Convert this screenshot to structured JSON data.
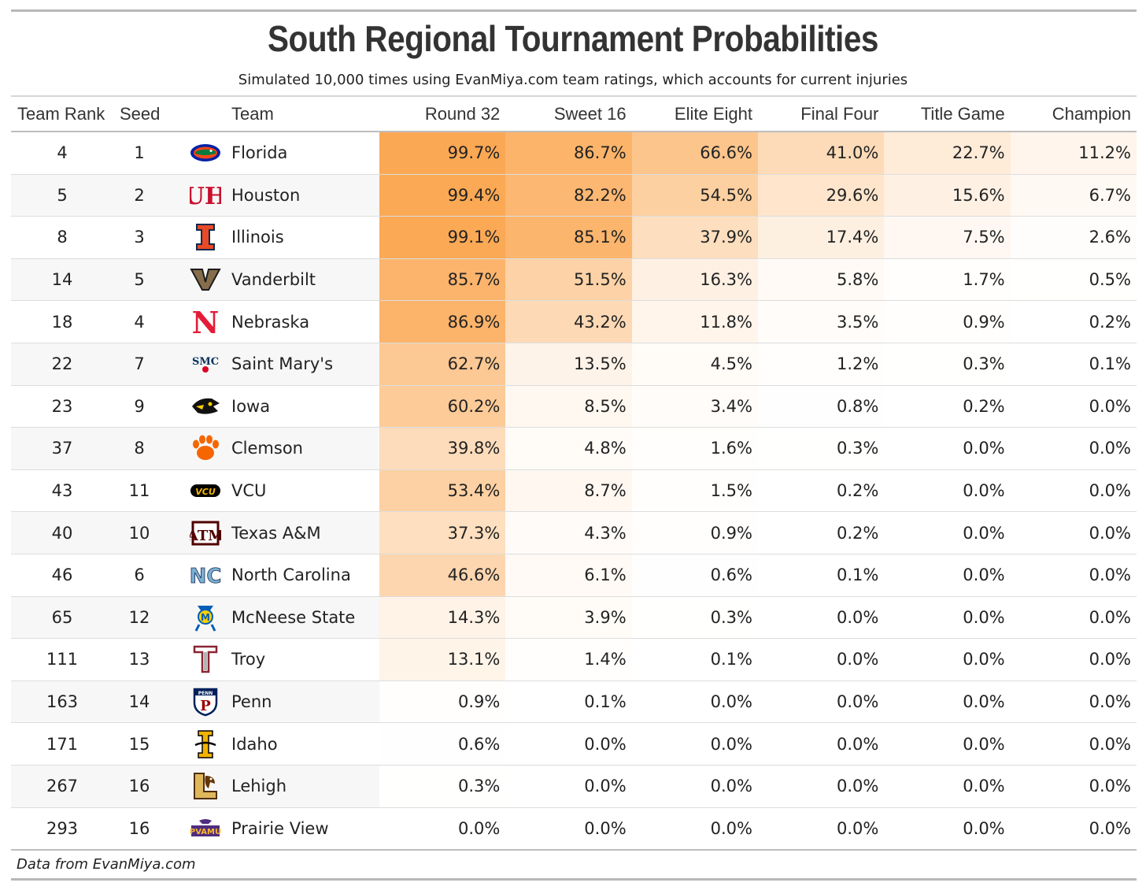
{
  "title": "South Regional Tournament Probabilities",
  "subtitle": "Simulated 10,000 times using EvanMiya.com team ratings, which accounts for current injuries",
  "source": "Data from EvanMiya.com",
  "headers": {
    "team_rank": "Team Rank",
    "seed": "Seed",
    "team": "Team",
    "round_32": "Round 32",
    "sweet_16": "Sweet 16",
    "elite_eight": "Elite Eight",
    "final_four": "Final Four",
    "title_game": "Title Game",
    "champion": "Champion"
  },
  "colors": {
    "heat_max": "#fba853",
    "heat_min": "#ffffff",
    "text": "#222222",
    "row_alt": "#f7f7f7"
  },
  "chart_data": {
    "type": "table",
    "title": "South Regional Tournament Probabilities",
    "subtitle": "Simulated 10,000 times using EvanMiya.com team ratings, which accounts for current injuries",
    "columns": [
      "Team Rank",
      "Seed",
      "Team",
      "Round 32",
      "Sweet 16",
      "Elite Eight",
      "Final Four",
      "Title Game",
      "Champion"
    ],
    "rows": [
      {
        "rank": 4,
        "seed": 1,
        "team": "Florida",
        "logo": "florida-gator-logo-icon",
        "probs": [
          99.7,
          86.7,
          66.6,
          41.0,
          22.7,
          11.2
        ],
        "probs_text": [
          "99.7%",
          "86.7%",
          "66.6%",
          "41.0%",
          "22.7%",
          "11.2%"
        ]
      },
      {
        "rank": 5,
        "seed": 2,
        "team": "Houston",
        "logo": "houston-uh-logo-icon",
        "probs": [
          99.4,
          82.2,
          54.5,
          29.6,
          15.6,
          6.7
        ],
        "probs_text": [
          "99.4%",
          "82.2%",
          "54.5%",
          "29.6%",
          "15.6%",
          "6.7%"
        ]
      },
      {
        "rank": 8,
        "seed": 3,
        "team": "Illinois",
        "logo": "illinois-i-logo-icon",
        "probs": [
          99.1,
          85.1,
          37.9,
          17.4,
          7.5,
          2.6
        ],
        "probs_text": [
          "99.1%",
          "85.1%",
          "37.9%",
          "17.4%",
          "7.5%",
          "2.6%"
        ]
      },
      {
        "rank": 14,
        "seed": 5,
        "team": "Vanderbilt",
        "logo": "vanderbilt-v-logo-icon",
        "probs": [
          85.7,
          51.5,
          16.3,
          5.8,
          1.7,
          0.5
        ],
        "probs_text": [
          "85.7%",
          "51.5%",
          "16.3%",
          "5.8%",
          "1.7%",
          "0.5%"
        ]
      },
      {
        "rank": 18,
        "seed": 4,
        "team": "Nebraska",
        "logo": "nebraska-n-logo-icon",
        "probs": [
          86.9,
          43.2,
          11.8,
          3.5,
          0.9,
          0.2
        ],
        "probs_text": [
          "86.9%",
          "43.2%",
          "11.8%",
          "3.5%",
          "0.9%",
          "0.2%"
        ]
      },
      {
        "rank": 22,
        "seed": 7,
        "team": "Saint Mary's",
        "logo": "saint-marys-smc-logo-icon",
        "probs": [
          62.7,
          13.5,
          4.5,
          1.2,
          0.3,
          0.1
        ],
        "probs_text": [
          "62.7%",
          "13.5%",
          "4.5%",
          "1.2%",
          "0.3%",
          "0.1%"
        ]
      },
      {
        "rank": 23,
        "seed": 9,
        "team": "Iowa",
        "logo": "iowa-hawkeye-logo-icon",
        "probs": [
          60.2,
          8.5,
          3.4,
          0.8,
          0.2,
          0.0
        ],
        "probs_text": [
          "60.2%",
          "8.5%",
          "3.4%",
          "0.8%",
          "0.2%",
          "0.0%"
        ]
      },
      {
        "rank": 37,
        "seed": 8,
        "team": "Clemson",
        "logo": "clemson-paw-logo-icon",
        "probs": [
          39.8,
          4.8,
          1.6,
          0.3,
          0.0,
          0.0
        ],
        "probs_text": [
          "39.8%",
          "4.8%",
          "1.6%",
          "0.3%",
          "0.0%",
          "0.0%"
        ]
      },
      {
        "rank": 43,
        "seed": 11,
        "team": "VCU",
        "logo": "vcu-logo-icon",
        "probs": [
          53.4,
          8.7,
          1.5,
          0.2,
          0.0,
          0.0
        ],
        "probs_text": [
          "53.4%",
          "8.7%",
          "1.5%",
          "0.2%",
          "0.0%",
          "0.0%"
        ]
      },
      {
        "rank": 40,
        "seed": 10,
        "team": "Texas A&M",
        "logo": "texas-am-logo-icon",
        "probs": [
          37.3,
          4.3,
          0.9,
          0.2,
          0.0,
          0.0
        ],
        "probs_text": [
          "37.3%",
          "4.3%",
          "0.9%",
          "0.2%",
          "0.0%",
          "0.0%"
        ]
      },
      {
        "rank": 46,
        "seed": 6,
        "team": "North Carolina",
        "logo": "north-carolina-nc-logo-icon",
        "probs": [
          46.6,
          6.1,
          0.6,
          0.1,
          0.0,
          0.0
        ],
        "probs_text": [
          "46.6%",
          "6.1%",
          "0.6%",
          "0.1%",
          "0.0%",
          "0.0%"
        ]
      },
      {
        "rank": 65,
        "seed": 12,
        "team": "McNeese State",
        "logo": "mcneese-cowboy-logo-icon",
        "probs": [
          14.3,
          3.9,
          0.3,
          0.0,
          0.0,
          0.0
        ],
        "probs_text": [
          "14.3%",
          "3.9%",
          "0.3%",
          "0.0%",
          "0.0%",
          "0.0%"
        ]
      },
      {
        "rank": 111,
        "seed": 13,
        "team": "Troy",
        "logo": "troy-t-logo-icon",
        "probs": [
          13.1,
          1.4,
          0.1,
          0.0,
          0.0,
          0.0
        ],
        "probs_text": [
          "13.1%",
          "1.4%",
          "0.1%",
          "0.0%",
          "0.0%",
          "0.0%"
        ]
      },
      {
        "rank": 163,
        "seed": 14,
        "team": "Penn",
        "logo": "penn-shield-logo-icon",
        "probs": [
          0.9,
          0.1,
          0.0,
          0.0,
          0.0,
          0.0
        ],
        "probs_text": [
          "0.9%",
          "0.1%",
          "0.0%",
          "0.0%",
          "0.0%",
          "0.0%"
        ]
      },
      {
        "rank": 171,
        "seed": 15,
        "team": "Idaho",
        "logo": "idaho-vandals-logo-icon",
        "probs": [
          0.6,
          0.0,
          0.0,
          0.0,
          0.0,
          0.0
        ],
        "probs_text": [
          "0.6%",
          "0.0%",
          "0.0%",
          "0.0%",
          "0.0%",
          "0.0%"
        ]
      },
      {
        "rank": 267,
        "seed": 16,
        "team": "Lehigh",
        "logo": "lehigh-hawk-logo-icon",
        "probs": [
          0.3,
          0.0,
          0.0,
          0.0,
          0.0,
          0.0
        ],
        "probs_text": [
          "0.3%",
          "0.0%",
          "0.0%",
          "0.0%",
          "0.0%",
          "0.0%"
        ]
      },
      {
        "rank": 293,
        "seed": 16,
        "team": "Prairie View",
        "logo": "prairie-view-pvamu-logo-icon",
        "probs": [
          0.0,
          0.0,
          0.0,
          0.0,
          0.0,
          0.0
        ],
        "probs_text": [
          "0.0%",
          "0.0%",
          "0.0%",
          "0.0%",
          "0.0%",
          "0.0%"
        ]
      }
    ]
  }
}
